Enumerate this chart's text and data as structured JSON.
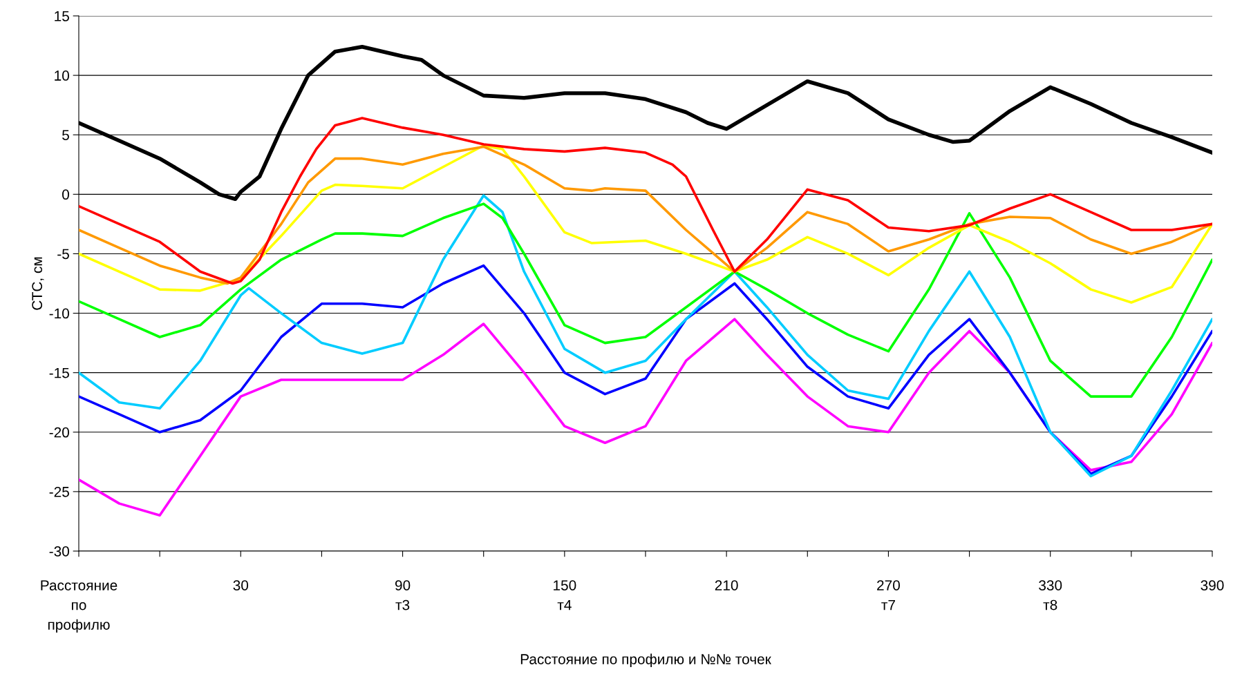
{
  "chart_data": {
    "type": "line",
    "xlabel": "Расстояние по профилю и №№ точек",
    "ylabel": "СТС, см",
    "xlim": [
      -30,
      390
    ],
    "xticks": [
      {
        "value": -30,
        "label": "Расстояние\nпо\nпрофилю"
      },
      {
        "value": 0,
        "label": null
      },
      {
        "value": 30,
        "label": "30"
      },
      {
        "value": 60,
        "label": null
      },
      {
        "value": 90,
        "label": "90\nт3"
      },
      {
        "value": 120,
        "label": null
      },
      {
        "value": 150,
        "label": "150\nт4"
      },
      {
        "value": 180,
        "label": null
      },
      {
        "value": 210,
        "label": "210"
      },
      {
        "value": 240,
        "label": null
      },
      {
        "value": 270,
        "label": "270\nт7"
      },
      {
        "value": 300,
        "label": null
      },
      {
        "value": 330,
        "label": "330\nт8"
      },
      {
        "value": 360,
        "label": null
      },
      {
        "value": 390,
        "label": "390"
      }
    ],
    "ylim": [
      -30,
      15
    ],
    "yticks": [
      -30,
      -25,
      -20,
      -15,
      -10,
      -5,
      0,
      5,
      10,
      15
    ],
    "grid": "y",
    "legend": false,
    "marker": "none",
    "line_style": "solid",
    "series": [
      {
        "color": "#000000",
        "x": [
          -30,
          -15,
          0,
          15,
          22,
          28,
          30,
          37,
          45,
          55,
          60,
          65,
          75,
          90,
          97,
          105,
          120,
          135,
          150,
          165,
          180,
          195,
          203,
          210,
          225,
          240,
          255,
          270,
          285,
          294,
          300,
          315,
          330,
          345,
          360,
          375,
          390
        ],
        "values": [
          6,
          4.5,
          3,
          1,
          0,
          -0.4,
          0.2,
          1.5,
          5.5,
          10,
          11,
          12,
          12.4,
          11.6,
          11.3,
          10,
          8.3,
          8.1,
          8.5,
          8.5,
          8,
          6.9,
          6,
          5.5,
          7.5,
          9.5,
          8.5,
          6.3,
          5,
          4.4,
          4.5,
          7,
          9,
          7.6,
          6,
          4.8,
          3.5
        ]
      },
      {
        "color": "#ff0000",
        "x": [
          -30,
          -15,
          0,
          15,
          27,
          30,
          37,
          45,
          52,
          58,
          65,
          75,
          90,
          105,
          120,
          135,
          150,
          165,
          180,
          190,
          195,
          205,
          213,
          225,
          240,
          255,
          270,
          285,
          300,
          315,
          330,
          345,
          360,
          375,
          390
        ],
        "values": [
          -1,
          -2.5,
          -4,
          -6.5,
          -7.5,
          -7.3,
          -5.5,
          -1.5,
          1.5,
          3.8,
          5.8,
          6.4,
          5.6,
          5,
          4.2,
          3.8,
          3.6,
          3.9,
          3.5,
          2.5,
          1.5,
          -3,
          -6.5,
          -3.8,
          0.4,
          -0.5,
          -2.8,
          -3.1,
          -2.6,
          -1.2,
          0,
          -1.5,
          -3,
          -3,
          -2.5
        ]
      },
      {
        "color": "#ff9900",
        "x": [
          -30,
          -15,
          0,
          15,
          25,
          30,
          45,
          55,
          60,
          65,
          75,
          90,
          105,
          120,
          135,
          150,
          160,
          165,
          180,
          195,
          213,
          225,
          240,
          255,
          270,
          285,
          300,
          315,
          330,
          345,
          360,
          375,
          390
        ],
        "values": [
          -3,
          -4.5,
          -6,
          -7,
          -7.5,
          -7,
          -2.5,
          1,
          2,
          3,
          3,
          2.5,
          3.4,
          4,
          2.5,
          0.5,
          0.3,
          0.5,
          0.3,
          -3,
          -6.5,
          -4.5,
          -1.5,
          -2.5,
          -4.8,
          -3.8,
          -2.5,
          -1.9,
          -2,
          -3.8,
          -5,
          -4,
          -2.5
        ]
      },
      {
        "color": "#ffff00",
        "x": [
          -30,
          -15,
          0,
          15,
          30,
          45,
          60,
          65,
          75,
          90,
          105,
          120,
          127,
          135,
          150,
          160,
          180,
          195,
          213,
          225,
          240,
          255,
          270,
          285,
          300,
          315,
          330,
          345,
          360,
          375,
          390
        ],
        "values": [
          -5,
          -6.5,
          -8,
          -8.1,
          -7.1,
          -3.5,
          0.3,
          0.8,
          0.7,
          0.5,
          2.3,
          4.1,
          3.8,
          1.5,
          -3.2,
          -4.1,
          -3.9,
          -5,
          -6.5,
          -5.5,
          -3.6,
          -5,
          -6.8,
          -4.5,
          -2.6,
          -4,
          -5.8,
          -8,
          -9.1,
          -7.8,
          -2.5
        ]
      },
      {
        "color": "#00ff00",
        "x": [
          -30,
          -15,
          0,
          15,
          30,
          45,
          60,
          65,
          75,
          90,
          105,
          120,
          127,
          135,
          150,
          165,
          180,
          195,
          213,
          225,
          240,
          255,
          270,
          285,
          300,
          315,
          330,
          345,
          360,
          375,
          390
        ],
        "values": [
          -9,
          -10.5,
          -12,
          -11,
          -8,
          -5.5,
          -3.8,
          -3.3,
          -3.3,
          -3.5,
          -2,
          -0.8,
          -2,
          -5,
          -11,
          -12.5,
          -12,
          -9.5,
          -6.5,
          -8,
          -10,
          -11.8,
          -13.2,
          -8,
          -1.6,
          -7,
          -14,
          -17,
          -17,
          -12,
          -5.5
        ]
      },
      {
        "color": "#00ccff",
        "x": [
          -30,
          -15,
          0,
          15,
          30,
          33,
          45,
          60,
          75,
          90,
          105,
          120,
          127,
          135,
          150,
          165,
          180,
          195,
          213,
          225,
          240,
          255,
          270,
          285,
          300,
          315,
          330,
          345,
          360,
          375,
          390
        ],
        "values": [
          -15,
          -17.5,
          -18,
          -14,
          -8.5,
          -7.9,
          -10,
          -12.5,
          -13.4,
          -12.5,
          -5.5,
          -0.1,
          -1.5,
          -6.5,
          -13,
          -15,
          -14,
          -10.5,
          -6.5,
          -9.5,
          -13.5,
          -16.5,
          -17.2,
          -11.5,
          -6.5,
          -12,
          -20,
          -23.7,
          -22,
          -16.5,
          -10.5
        ]
      },
      {
        "color": "#0000ff",
        "x": [
          -30,
          -15,
          0,
          15,
          30,
          45,
          60,
          75,
          90,
          105,
          120,
          135,
          150,
          165,
          180,
          195,
          213,
          225,
          240,
          255,
          270,
          285,
          300,
          315,
          330,
          345,
          360,
          375,
          390
        ],
        "values": [
          -17,
          -18.5,
          -20,
          -19,
          -16.5,
          -12,
          -9.2,
          -9.2,
          -9.5,
          -7.5,
          -6,
          -10,
          -15,
          -16.8,
          -15.5,
          -10.5,
          -7.5,
          -10.5,
          -14.5,
          -17,
          -18,
          -13.5,
          -10.5,
          -15,
          -20,
          -23.5,
          -22,
          -17,
          -11.5
        ]
      },
      {
        "color": "#ff00ff",
        "x": [
          -30,
          -15,
          0,
          15,
          30,
          45,
          60,
          75,
          90,
          105,
          120,
          135,
          150,
          165,
          180,
          195,
          213,
          225,
          240,
          255,
          270,
          285,
          300,
          315,
          330,
          345,
          360,
          375,
          390
        ],
        "values": [
          -24,
          -26,
          -27,
          -22,
          -17,
          -15.6,
          -15.6,
          -15.6,
          -15.6,
          -13.5,
          -10.9,
          -15,
          -19.5,
          -20.9,
          -19.5,
          -14,
          -10.5,
          -13.5,
          -17,
          -19.5,
          -20,
          -15,
          -11.5,
          -15,
          -20,
          -23.2,
          -22.5,
          -18.5,
          -12.5
        ]
      }
    ]
  }
}
